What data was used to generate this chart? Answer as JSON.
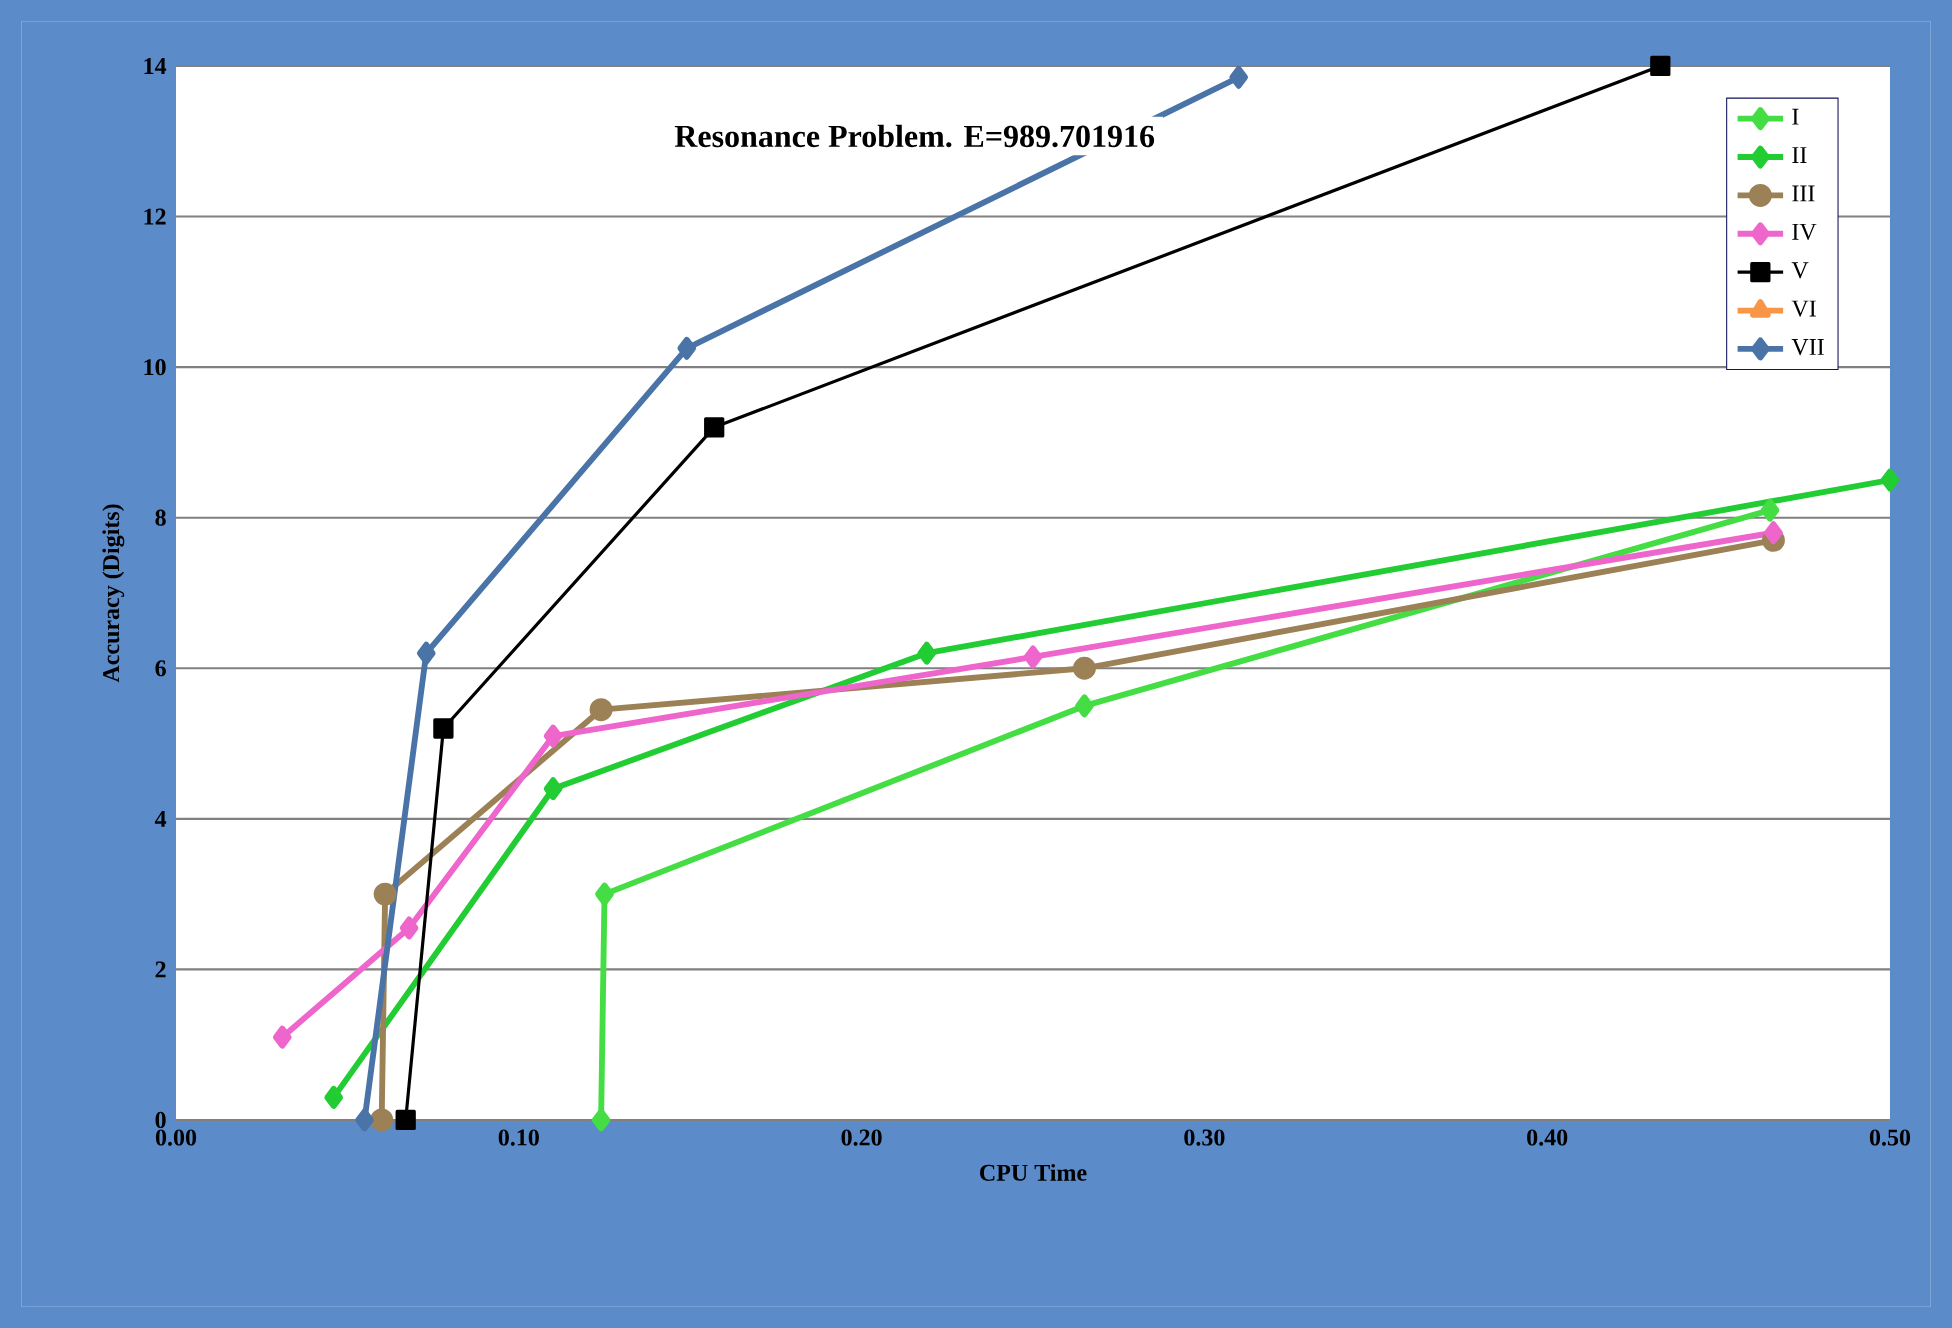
{
  "chart_data": {
    "type": "line",
    "title": "Resonance Problem.  E=989.701916",
    "xlabel": "CPU Time",
    "ylabel": "Accuracy (Digits)",
    "xlim": [
      0,
      0.5
    ],
    "ylim": [
      0,
      14
    ],
    "xticks": [
      {
        "value": 0,
        "label": "0.00"
      },
      {
        "value": 0.1,
        "label": "0.10"
      },
      {
        "value": 0.2,
        "label": "0.20"
      },
      {
        "value": 0.3,
        "label": "0.30"
      },
      {
        "value": 0.4,
        "label": "0.40"
      },
      {
        "value": 0.5,
        "label": "0.50"
      }
    ],
    "yticks": [
      0,
      2,
      4,
      6,
      8,
      10,
      12,
      14
    ],
    "grid": "y",
    "legend": "top right",
    "series": [
      {
        "name": "I",
        "color": "#44dd44",
        "marker": "diamond",
        "x": [
          0.124,
          0.125,
          0.265,
          0.465
        ],
        "values": [
          0,
          3.0,
          5.5,
          8.1
        ]
      },
      {
        "name": "II",
        "color": "#22cc33",
        "marker": "diamond",
        "x": [
          0.046,
          0.11,
          0.219,
          0.5
        ],
        "values": [
          0.3,
          4.4,
          6.2,
          8.5
        ]
      },
      {
        "name": "III",
        "color": "#9b8155",
        "marker": "circle",
        "x": [
          0.06,
          0.061,
          0.124,
          0.265,
          0.466
        ],
        "values": [
          0,
          3.0,
          5.45,
          6.0,
          7.7
        ]
      },
      {
        "name": "IV",
        "color": "#ee66cc",
        "marker": "diamond",
        "x": [
          0.031,
          0.068,
          0.11,
          0.25,
          0.466
        ],
        "values": [
          1.1,
          2.55,
          5.1,
          6.15,
          7.8
        ]
      },
      {
        "name": "V",
        "color": "#000000",
        "marker": "square",
        "x": [
          0.067,
          0.078,
          0.157,
          0.433
        ],
        "values": [
          0,
          5.2,
          9.2,
          14
        ]
      },
      {
        "name": "VI",
        "color": "#f79646",
        "marker": "triangle"
      },
      {
        "name": "VII",
        "color": "#4a74a8",
        "marker": "diamond",
        "x": [
          0.055,
          0.073,
          0.149,
          0.31
        ],
        "values": [
          0,
          6.2,
          10.25,
          13.85
        ]
      }
    ]
  }
}
